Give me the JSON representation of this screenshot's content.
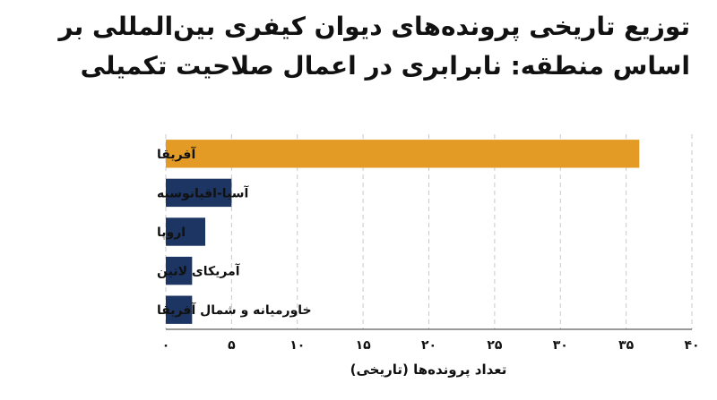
{
  "chart_data": {
    "type": "bar",
    "orientation": "horizontal",
    "title": "توزیع تاریخی پرونده‌های دیوان کیفری بین‌المللی بر اساس منطقه: نابرابری در اعمال صلاحیت تکمیلی",
    "categories": [
      "آفریقا",
      "آسیا-اقیانوسیه",
      "اروپا",
      "آمریکای لاتین",
      "خاورمیانه و شمال آفریقا"
    ],
    "values": [
      36,
      5,
      3,
      2,
      2
    ],
    "xlabel": "تعداد پرونده‌ها (تاریخی)",
    "ylabel": "",
    "xlim": [
      0,
      40
    ],
    "ticks": [
      0,
      5,
      10,
      15,
      20,
      25,
      30,
      35,
      40
    ],
    "tick_labels": [
      "۰",
      "۵",
      "۱۰",
      "۱۵",
      "۲۰",
      "۲۵",
      "۳۰",
      "۳۵",
      "۴۰"
    ],
    "grid": true,
    "colors": {
      "highlight": "#E39B26",
      "default": "#1C3563",
      "grid": "#c9c9c9",
      "axis": "#333333"
    },
    "highlight_index": 0
  }
}
